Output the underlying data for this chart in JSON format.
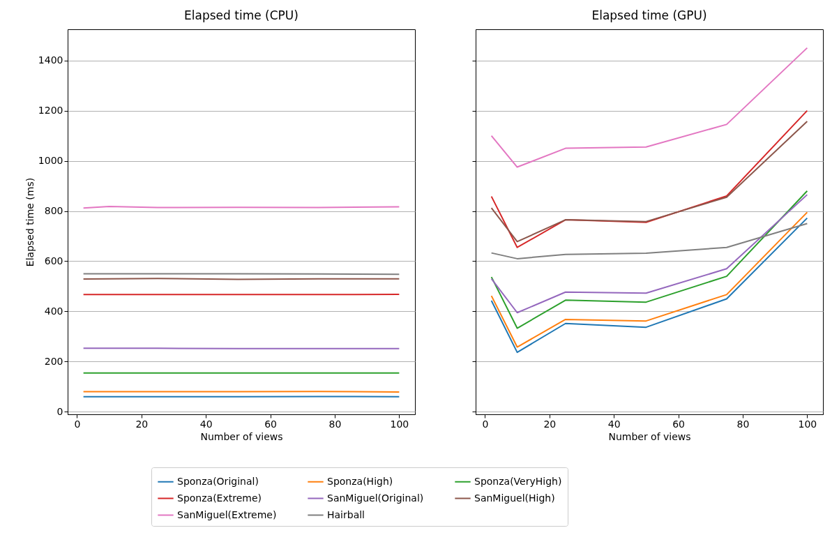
{
  "chart_data": [
    {
      "type": "line",
      "title": "Elapsed time (CPU)",
      "xlabel": "Number of views",
      "ylabel": "Elapsed time (ms)",
      "x": [
        2,
        10,
        25,
        50,
        75,
        100
      ],
      "xlim": [
        -2.9,
        104.9
      ],
      "xticks": [
        0,
        20,
        40,
        60,
        80,
        100
      ],
      "ylim": [
        -10,
        1524
      ],
      "yticks": [
        0,
        200,
        400,
        600,
        800,
        1000,
        1200,
        1400
      ],
      "grid": "y",
      "legend": "bottom",
      "series": [
        {
          "name": "Sponza(Original)",
          "color": "#1f77b4",
          "values": [
            60,
            60,
            60,
            60,
            61,
            60
          ]
        },
        {
          "name": "Sponza(High)",
          "color": "#ff7f0e",
          "values": [
            80,
            80,
            80,
            80,
            81,
            79
          ]
        },
        {
          "name": "Sponza(VeryHigh)",
          "color": "#2ca02c",
          "values": [
            155,
            155,
            155,
            155,
            155,
            155
          ]
        },
        {
          "name": "Sponza(Extreme)",
          "color": "#d62728",
          "values": [
            467,
            467,
            467,
            467,
            467,
            468
          ]
        },
        {
          "name": "SanMiguel(Original)",
          "color": "#9467bd",
          "values": [
            253,
            253,
            253,
            252,
            252,
            252
          ]
        },
        {
          "name": "SanMiguel(High)",
          "color": "#8c564b",
          "values": [
            529,
            530,
            531,
            528,
            530,
            530
          ]
        },
        {
          "name": "SanMiguel(Extreme)",
          "color": "#e377c2",
          "values": [
            812,
            818,
            814,
            815,
            814,
            817
          ]
        },
        {
          "name": "Hairball",
          "color": "#7f7f7f",
          "values": [
            550,
            550,
            550,
            550,
            549,
            548
          ]
        }
      ]
    },
    {
      "type": "line",
      "title": "Elapsed time (GPU)",
      "xlabel": "Number of views",
      "x": [
        2,
        10,
        25,
        50,
        75,
        100
      ],
      "xlim": [
        -2.9,
        104.9
      ],
      "xticks": [
        0,
        20,
        40,
        60,
        80,
        100
      ],
      "ylim": [
        -10,
        1524
      ],
      "yticks": [
        0,
        200,
        400,
        600,
        800,
        1000,
        1200,
        1400
      ],
      "grid": "y",
      "tick_labels": "x",
      "legend": "bottom",
      "series": [
        {
          "name": "Sponza(Original)",
          "color": "#1f77b4",
          "values": [
            443,
            237,
            352,
            337,
            450,
            772
          ]
        },
        {
          "name": "Sponza(High)",
          "color": "#ff7f0e",
          "values": [
            462,
            258,
            368,
            362,
            467,
            795
          ]
        },
        {
          "name": "Sponza(VeryHigh)",
          "color": "#2ca02c",
          "values": [
            537,
            333,
            445,
            437,
            540,
            880
          ]
        },
        {
          "name": "Sponza(Extreme)",
          "color": "#d62728",
          "values": [
            858,
            655,
            765,
            755,
            860,
            1200
          ]
        },
        {
          "name": "SanMiguel(Original)",
          "color": "#9467bd",
          "values": [
            530,
            395,
            477,
            473,
            570,
            865
          ]
        },
        {
          "name": "SanMiguel(High)",
          "color": "#8c564b",
          "values": [
            812,
            678,
            765,
            758,
            855,
            1157
          ]
        },
        {
          "name": "SanMiguel(Extreme)",
          "color": "#e377c2",
          "values": [
            1100,
            975,
            1050,
            1055,
            1145,
            1450
          ]
        },
        {
          "name": "Hairball",
          "color": "#7f7f7f",
          "values": [
            633,
            610,
            627,
            632,
            655,
            750
          ]
        }
      ]
    }
  ]
}
